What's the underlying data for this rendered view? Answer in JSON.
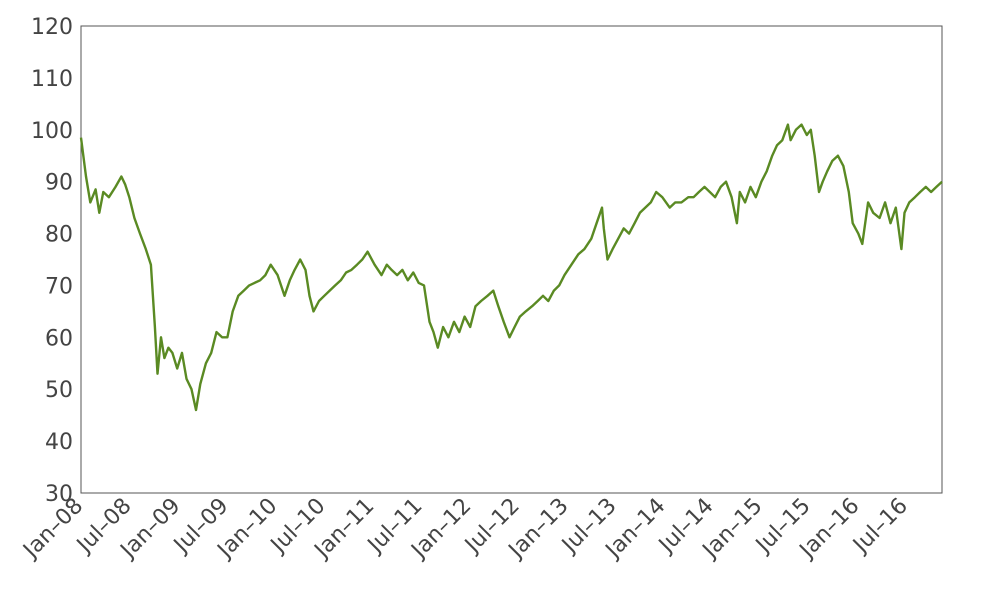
{
  "chart_data": {
    "type": "line",
    "title": "",
    "xlabel": "",
    "ylabel": "",
    "ylim": [
      30,
      120
    ],
    "xlim": [
      "2008-01-01",
      "2016-11-15"
    ],
    "y_ticks": [
      30,
      40,
      50,
      60,
      70,
      80,
      90,
      100,
      110,
      120
    ],
    "x_tick_labels": [
      "Jan–08",
      "Jul–08",
      "Jan–09",
      "Jul–09",
      "Jan–10",
      "Jul–10",
      "Jan–11",
      "Jul–11",
      "Jan–12",
      "Jul–12",
      "Jan–13",
      "Jul–13",
      "Jan–14",
      "Jul–14",
      "Jan–15",
      "Jul–15",
      "Jan–16",
      "Jul–16"
    ],
    "x_tick_dates": [
      "2008-01-01",
      "2008-07-01",
      "2009-01-01",
      "2009-07-01",
      "2010-01-01",
      "2010-07-01",
      "2011-01-01",
      "2011-07-01",
      "2012-01-01",
      "2012-07-01",
      "2013-01-01",
      "2013-07-01",
      "2014-01-01",
      "2014-07-01",
      "2015-01-01",
      "2015-07-01",
      "2016-01-01",
      "2016-07-01"
    ],
    "grid": false,
    "line_color": "#5a8a23",
    "series": [
      {
        "x": [
          "2008-01-01",
          "2008-01-20",
          "2008-02-05",
          "2008-02-25",
          "2008-03-10",
          "2008-03-25",
          "2008-04-15",
          "2008-05-10",
          "2008-06-01",
          "2008-06-15",
          "2008-07-01",
          "2008-07-20",
          "2008-08-10",
          "2008-09-01",
          "2008-09-20",
          "2008-10-05",
          "2008-10-15",
          "2008-10-28",
          "2008-11-10",
          "2008-11-25",
          "2008-12-10",
          "2008-12-28",
          "2009-01-15",
          "2009-02-01",
          "2009-02-20",
          "2009-03-09",
          "2009-03-25",
          "2009-04-15",
          "2009-05-05",
          "2009-05-25",
          "2009-06-15",
          "2009-07-05",
          "2009-07-25",
          "2009-08-15",
          "2009-09-05",
          "2009-09-25",
          "2009-10-15",
          "2009-11-05",
          "2009-11-25",
          "2009-12-15",
          "2010-01-10",
          "2010-02-05",
          "2010-02-25",
          "2010-03-15",
          "2010-04-05",
          "2010-04-25",
          "2010-05-10",
          "2010-05-25",
          "2010-06-15",
          "2010-07-05",
          "2010-07-25",
          "2010-08-15",
          "2010-09-05",
          "2010-09-25",
          "2010-10-15",
          "2010-11-05",
          "2010-11-25",
          "2010-12-15",
          "2011-01-10",
          "2011-02-05",
          "2011-02-25",
          "2011-03-15",
          "2011-04-05",
          "2011-04-25",
          "2011-05-15",
          "2011-06-05",
          "2011-06-25",
          "2011-07-15",
          "2011-08-05",
          "2011-08-20",
          "2011-09-05",
          "2011-09-25",
          "2011-10-15",
          "2011-11-05",
          "2011-11-25",
          "2011-12-15",
          "2012-01-05",
          "2012-01-25",
          "2012-02-15",
          "2012-03-10",
          "2012-04-01",
          "2012-04-20",
          "2012-05-10",
          "2012-06-01",
          "2012-06-20",
          "2012-07-10",
          "2012-08-01",
          "2012-08-25",
          "2012-09-15",
          "2012-10-05",
          "2012-10-25",
          "2012-11-15",
          "2012-12-05",
          "2012-12-25",
          "2013-01-20",
          "2013-02-15",
          "2013-03-10",
          "2013-04-05",
          "2013-04-25",
          "2013-05-15",
          "2013-05-22",
          "2013-06-05",
          "2013-06-24",
          "2013-07-15",
          "2013-08-05",
          "2013-08-25",
          "2013-09-15",
          "2013-10-05",
          "2013-10-25",
          "2013-11-15",
          "2013-12-05",
          "2013-12-28",
          "2014-01-25",
          "2014-02-15",
          "2014-03-10",
          "2014-04-05",
          "2014-04-25",
          "2014-05-15",
          "2014-06-05",
          "2014-06-25",
          "2014-07-15",
          "2014-08-05",
          "2014-08-25",
          "2014-09-15",
          "2014-10-05",
          "2014-10-16",
          "2014-11-05",
          "2014-11-25",
          "2014-12-15",
          "2015-01-05",
          "2015-01-25",
          "2015-02-15",
          "2015-03-05",
          "2015-03-25",
          "2015-04-15",
          "2015-04-25",
          "2015-05-15",
          "2015-06-05",
          "2015-06-25",
          "2015-07-10",
          "2015-07-25",
          "2015-08-10",
          "2015-08-24",
          "2015-09-10",
          "2015-09-29",
          "2015-10-20",
          "2015-11-10",
          "2015-11-30",
          "2015-12-15",
          "2016-01-05",
          "2016-01-20",
          "2016-02-11",
          "2016-03-01",
          "2016-03-25",
          "2016-04-15",
          "2016-05-05",
          "2016-05-25",
          "2016-06-15",
          "2016-06-27",
          "2016-07-15",
          "2016-08-05",
          "2016-08-25",
          "2016-09-15",
          "2016-10-05",
          "2016-10-25",
          "2016-11-15"
        ],
        "y": [
          98.5,
          91,
          86,
          88.5,
          84,
          88,
          87,
          89,
          91,
          89.5,
          87,
          83,
          80,
          77,
          74,
          62,
          53,
          60,
          56,
          58,
          57,
          54,
          57,
          52,
          50,
          46,
          51,
          55,
          57,
          61,
          60,
          60,
          65,
          68,
          69,
          70,
          70.5,
          71,
          72,
          74,
          72,
          68,
          71,
          73,
          75,
          73,
          68,
          65,
          67,
          68,
          69,
          70,
          71,
          72.5,
          73,
          74,
          75,
          76.5,
          74,
          72,
          74,
          73,
          72,
          73,
          71,
          72.5,
          70.5,
          70,
          63,
          61,
          58,
          62,
          60,
          63,
          61,
          64,
          62,
          66,
          67,
          68,
          69,
          66,
          63,
          60,
          62,
          64,
          65,
          66,
          67,
          68,
          67,
          69,
          70,
          72,
          74,
          76,
          77,
          79,
          82,
          85,
          81,
          75,
          77,
          79,
          81,
          80,
          82,
          84,
          85,
          86,
          88,
          87,
          85,
          86,
          86,
          87,
          87,
          88,
          89,
          88,
          87,
          89,
          90,
          87,
          82,
          88,
          86,
          89,
          87,
          90,
          92,
          95,
          97,
          98,
          101,
          98,
          100,
          101,
          99,
          100,
          95,
          88,
          90,
          92,
          94,
          95,
          93,
          88,
          82,
          80,
          78,
          86,
          84,
          83,
          86,
          82,
          85,
          77,
          84,
          86,
          87,
          88,
          89,
          88,
          89,
          90
        ]
      }
    ]
  }
}
